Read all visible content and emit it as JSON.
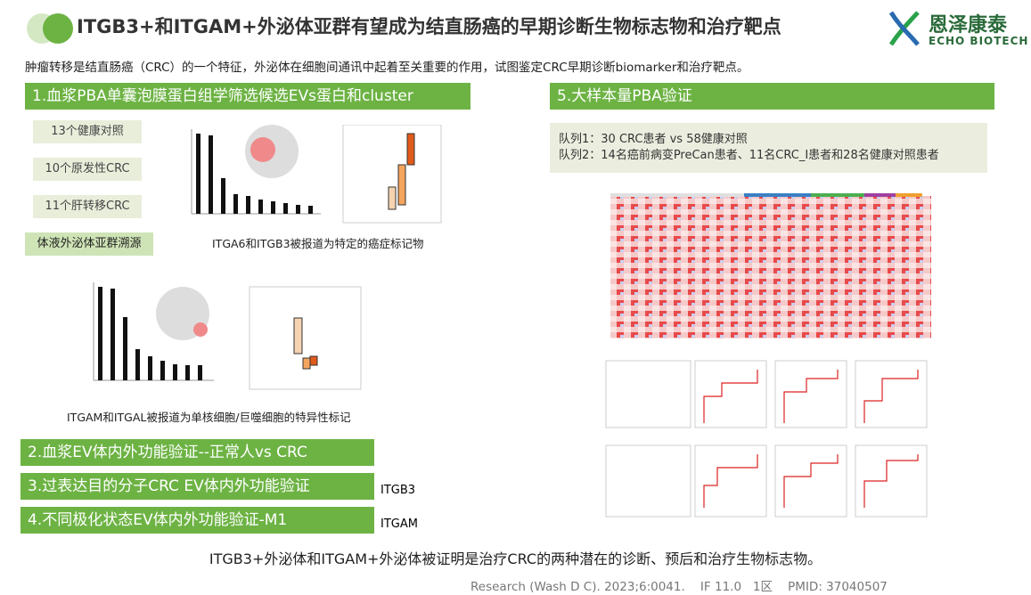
{
  "header": {
    "title": "ITGB3+和ITGAM+外泌体亚群有望成为结直肠癌的早期诊断生物标志物和治疗靶点",
    "logo_cn": "恩泽康泰",
    "logo_en": "ECHO BIOTECH"
  },
  "intro": "肿瘤转移是结直肠癌（CRC）的一个特征，外泌体在细胞间通讯中起着至关重要的作用，试图鉴定CRC早期诊断biomarker和治疗靶点。",
  "section1": {
    "title": "1.血浆PBA单囊泡膜蛋白组学筛选候选EVs蛋白和cluster",
    "groups": [
      "13个健康对照",
      "10个原发性CRC",
      "11个肝转移CRC"
    ],
    "tag": "体液外泌体亚群溯源",
    "caption1": "ITGA6和ITGB3被报道为特定的癌症标记物",
    "caption2": "ITGAM和ITGAL被报道为单核细胞/巨噬细胞的特异性标记"
  },
  "sections": [
    {
      "title": "2.血浆EV体内外功能验证--正常人vs CRC",
      "note": null
    },
    {
      "title": "3.过表达目的分子CRC EV体内外功能验证",
      "note": "ITGB3"
    },
    {
      "title": "4.不同极化状态EV体内外功能验证-M1",
      "note": "ITGAM"
    }
  ],
  "section5": {
    "title": "5.大样本量PBA验证",
    "cohorts": [
      "队列1：30 CRC患者 vs  58健康对照",
      "队列2：14名癌前病变PreCan患者、11名CRC_I患者和28名健康对照患者"
    ]
  },
  "conclusion": "ITGB3+外泌体和ITGAM+外泌体被证明是治疗CRC的两种潜在的诊断、预后和治疗生物标志物。",
  "citation": "Research (Wash D C). 2023;6:0041.    IF 11.0   1区    PMID: 37040507"
}
